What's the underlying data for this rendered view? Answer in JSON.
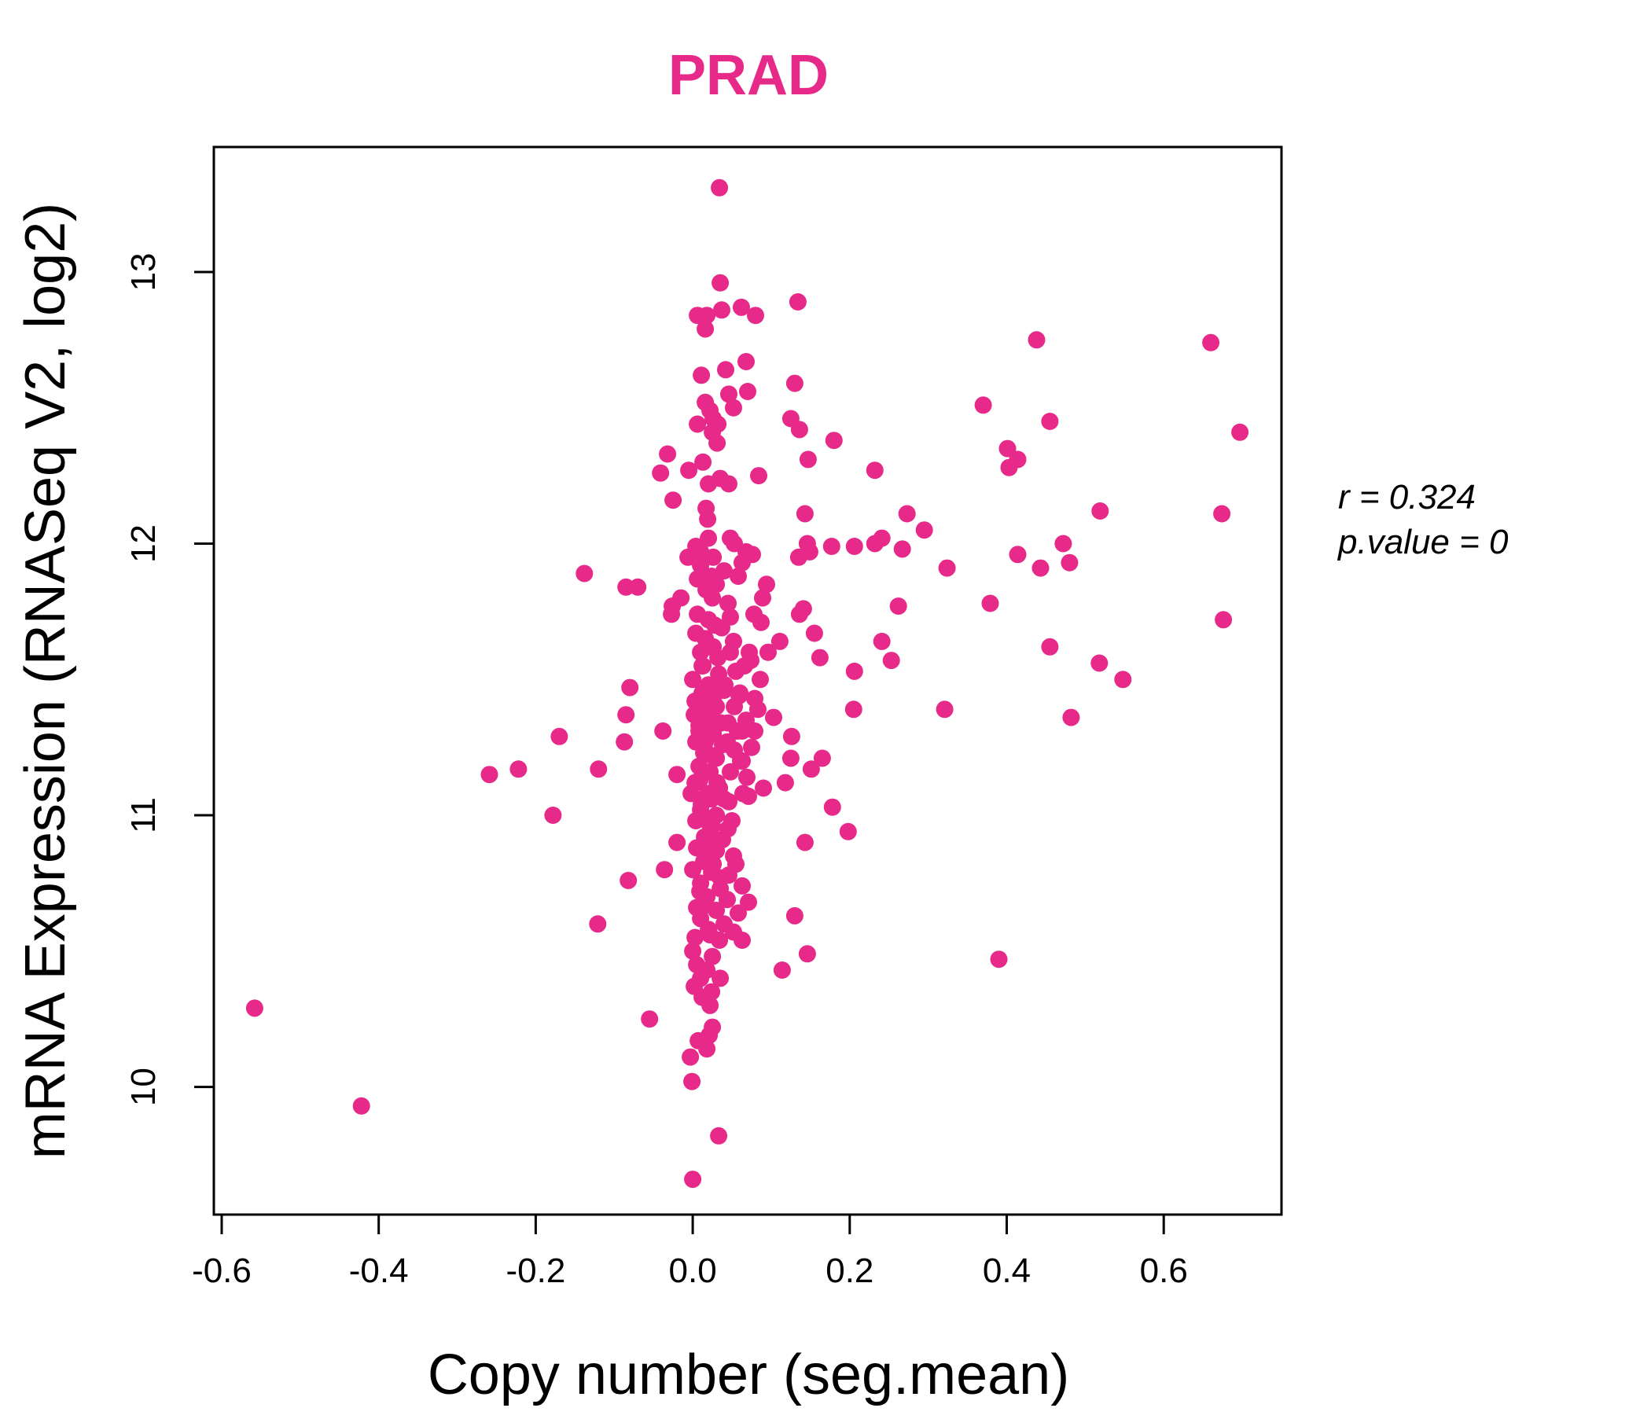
{
  "chart_data": {
    "type": "scatter",
    "title": "PRAD",
    "xlabel": "Copy number (seg.mean)",
    "ylabel": "mRNA Expression (RNASeq V2, log2)",
    "xlim": [
      -0.61,
      0.75
    ],
    "ylim": [
      9.53,
      13.46
    ],
    "x_ticks": [
      -0.6,
      -0.4,
      -0.2,
      0.0,
      0.2,
      0.4,
      0.6
    ],
    "x_tick_labels": [
      "-0.6",
      "-0.4",
      "-0.2",
      "0.0",
      "0.2",
      "0.4",
      "0.6"
    ],
    "y_ticks": [
      10,
      11,
      12,
      13
    ],
    "y_tick_labels": [
      "10",
      "11",
      "12",
      "13"
    ],
    "grid": false,
    "color": "#E7298A",
    "stats": {
      "r_label": "r = 0.324",
      "p_label": "p.value = 0"
    },
    "points": [
      [
        0.034,
        13.31
      ],
      [
        0.035,
        12.96
      ],
      [
        0.062,
        12.87
      ],
      [
        0.037,
        12.86
      ],
      [
        0.134,
        12.89
      ],
      [
        0.08,
        12.84
      ],
      [
        0.006,
        12.84
      ],
      [
        0.018,
        12.84
      ],
      [
        0.016,
        12.79
      ],
      [
        0.068,
        12.67
      ],
      [
        0.042,
        12.64
      ],
      [
        0.011,
        12.62
      ],
      [
        0.13,
        12.59
      ],
      [
        0.07,
        12.56
      ],
      [
        0.046,
        12.55
      ],
      [
        0.016,
        12.52
      ],
      [
        0.022,
        12.49
      ],
      [
        0.052,
        12.5
      ],
      [
        0.026,
        12.46
      ],
      [
        0.006,
        12.44
      ],
      [
        0.032,
        12.44
      ],
      [
        0.125,
        12.46
      ],
      [
        0.136,
        12.42
      ],
      [
        0.025,
        12.41
      ],
      [
        0.031,
        12.37
      ],
      [
        0.18,
        12.38
      ],
      [
        0.37,
        12.51
      ],
      [
        0.438,
        12.75
      ],
      [
        0.455,
        12.45
      ],
      [
        0.401,
        12.35
      ],
      [
        0.414,
        12.31
      ],
      [
        0.403,
        12.28
      ],
      [
        0.66,
        12.74
      ],
      [
        0.697,
        12.41
      ],
      [
        -0.032,
        12.33
      ],
      [
        -0.041,
        12.26
      ],
      [
        -0.005,
        12.27
      ],
      [
        0.013,
        12.3
      ],
      [
        0.02,
        12.22
      ],
      [
        0.035,
        12.24
      ],
      [
        0.046,
        12.22
      ],
      [
        0.084,
        12.25
      ],
      [
        0.147,
        12.31
      ],
      [
        0.232,
        12.27
      ],
      [
        -0.025,
        12.16
      ],
      [
        0.017,
        12.13
      ],
      [
        0.019,
        12.09
      ],
      [
        0.143,
        12.11
      ],
      [
        0.273,
        12.11
      ],
      [
        0.295,
        12.05
      ],
      [
        0.519,
        12.12
      ],
      [
        0.674,
        12.11
      ],
      [
        0.02,
        12.02
      ],
      [
        0.048,
        12.02
      ],
      [
        0.053,
        12.0
      ],
      [
        0.146,
        12.0
      ],
      [
        0.177,
        11.99
      ],
      [
        0.206,
        11.99
      ],
      [
        0.232,
        12.0
      ],
      [
        0.241,
        12.02
      ],
      [
        0.267,
        11.98
      ],
      [
        0.472,
        12.0
      ],
      [
        0.414,
        11.96
      ],
      [
        0.443,
        11.91
      ],
      [
        0.48,
        11.93
      ],
      [
        0.324,
        11.91
      ],
      [
        0.004,
        11.99
      ],
      [
        0.01,
        11.97
      ],
      [
        -0.006,
        11.95
      ],
      [
        0.026,
        11.95
      ],
      [
        0.068,
        11.97
      ],
      [
        0.076,
        11.96
      ],
      [
        0.135,
        11.95
      ],
      [
        0.149,
        11.97
      ],
      [
        0.01,
        11.92
      ],
      [
        0.04,
        11.9
      ],
      [
        0.063,
        11.93
      ],
      [
        0.006,
        11.87
      ],
      [
        0.03,
        11.85
      ],
      [
        -0.138,
        11.89
      ],
      [
        -0.085,
        11.84
      ],
      [
        -0.07,
        11.84
      ],
      [
        -0.015,
        11.8
      ],
      [
        0.025,
        11.8
      ],
      [
        0.045,
        11.78
      ],
      [
        0.094,
        11.85
      ],
      [
        0.089,
        11.8
      ],
      [
        0.379,
        11.78
      ],
      [
        0.262,
        11.77
      ],
      [
        0.676,
        11.72
      ],
      [
        -0.026,
        11.77
      ],
      [
        -0.027,
        11.74
      ],
      [
        0.006,
        11.74
      ],
      [
        0.02,
        11.72
      ],
      [
        0.078,
        11.74
      ],
      [
        0.087,
        11.71
      ],
      [
        0.136,
        11.74
      ],
      [
        0.141,
        11.76
      ],
      [
        0.037,
        11.69
      ],
      [
        0.004,
        11.67
      ],
      [
        0.016,
        11.65
      ],
      [
        0.052,
        11.64
      ],
      [
        0.155,
        11.67
      ],
      [
        0.111,
        11.64
      ],
      [
        0.241,
        11.64
      ],
      [
        0.01,
        11.6
      ],
      [
        0.026,
        11.62
      ],
      [
        0.048,
        11.6
      ],
      [
        0.074,
        11.57
      ],
      [
        0.096,
        11.6
      ],
      [
        0.162,
        11.58
      ],
      [
        0.253,
        11.57
      ],
      [
        0.455,
        11.62
      ],
      [
        0.518,
        11.56
      ],
      [
        0.548,
        11.5
      ],
      [
        0.012,
        11.55
      ],
      [
        0.033,
        11.52
      ],
      [
        0.055,
        11.53
      ],
      [
        0.086,
        11.5
      ],
      [
        0.206,
        11.53
      ],
      [
        -0.08,
        11.47
      ],
      [
        0.0,
        11.5
      ],
      [
        0.02,
        11.48
      ],
      [
        0.04,
        11.46
      ],
      [
        0.06,
        11.45
      ],
      [
        0.079,
        11.43
      ],
      [
        0.014,
        11.42
      ],
      [
        0.03,
        11.4
      ],
      [
        0.053,
        11.4
      ],
      [
        0.083,
        11.39
      ],
      [
        0.205,
        11.39
      ],
      [
        0.321,
        11.39
      ],
      [
        0.482,
        11.36
      ],
      [
        -0.085,
        11.37
      ],
      [
        0.002,
        11.37
      ],
      [
        0.022,
        11.35
      ],
      [
        0.045,
        11.34
      ],
      [
        0.068,
        11.35
      ],
      [
        0.103,
        11.36
      ],
      [
        -0.038,
        11.31
      ],
      [
        -0.17,
        11.29
      ],
      [
        0.008,
        11.31
      ],
      [
        0.026,
        11.3
      ],
      [
        0.063,
        11.31
      ],
      [
        0.079,
        11.31
      ],
      [
        0.126,
        11.29
      ],
      [
        -0.087,
        11.27
      ],
      [
        0.004,
        11.27
      ],
      [
        0.038,
        11.26
      ],
      [
        0.053,
        11.24
      ],
      [
        0.075,
        11.25
      ],
      [
        0.014,
        11.23
      ],
      [
        0.03,
        11.21
      ],
      [
        0.063,
        11.2
      ],
      [
        0.165,
        11.21
      ],
      [
        0.125,
        11.21
      ],
      [
        -0.259,
        11.15
      ],
      [
        -0.222,
        11.17
      ],
      [
        -0.12,
        11.17
      ],
      [
        -0.02,
        11.15
      ],
      [
        0.008,
        11.18
      ],
      [
        0.022,
        11.16
      ],
      [
        0.048,
        11.16
      ],
      [
        0.069,
        11.14
      ],
      [
        0.151,
        11.17
      ],
      [
        0.118,
        11.12
      ],
      [
        0.003,
        11.12
      ],
      [
        0.034,
        11.1
      ],
      [
        0.064,
        11.08
      ],
      [
        0.09,
        11.1
      ],
      [
        0.024,
        11.06
      ],
      [
        0.046,
        11.05
      ],
      [
        0.178,
        11.03
      ],
      [
        0.01,
        11.02
      ],
      [
        0.03,
        11.0
      ],
      [
        -0.178,
        11.0
      ],
      [
        0.004,
        10.98
      ],
      [
        0.025,
        10.96
      ],
      [
        0.045,
        10.95
      ],
      [
        0.198,
        10.94
      ],
      [
        0.015,
        10.92
      ],
      [
        0.038,
        10.91
      ],
      [
        -0.02,
        10.9
      ],
      [
        0.005,
        10.88
      ],
      [
        0.03,
        10.87
      ],
      [
        0.143,
        10.9
      ],
      [
        0.052,
        10.85
      ],
      [
        0.014,
        10.83
      ],
      [
        -0.036,
        10.8
      ],
      [
        0.0,
        10.8
      ],
      [
        0.024,
        10.79
      ],
      [
        0.046,
        10.78
      ],
      [
        -0.082,
        10.76
      ],
      [
        0.01,
        10.75
      ],
      [
        0.035,
        10.73
      ],
      [
        0.063,
        10.74
      ],
      [
        0.018,
        10.7
      ],
      [
        0.044,
        10.69
      ],
      [
        0.071,
        10.68
      ],
      [
        0.005,
        10.66
      ],
      [
        0.03,
        10.65
      ],
      [
        0.058,
        10.64
      ],
      [
        0.13,
        10.63
      ],
      [
        0.01,
        10.62
      ],
      [
        0.04,
        10.6
      ],
      [
        -0.121,
        10.6
      ],
      [
        0.02,
        10.58
      ],
      [
        0.052,
        10.57
      ],
      [
        0.003,
        10.55
      ],
      [
        0.034,
        10.54
      ],
      [
        0.063,
        10.54
      ],
      [
        0.146,
        10.49
      ],
      [
        0.0,
        10.5
      ],
      [
        0.025,
        10.48
      ],
      [
        0.39,
        10.47
      ],
      [
        0.005,
        10.45
      ],
      [
        0.018,
        10.43
      ],
      [
        0.114,
        10.43
      ],
      [
        0.01,
        10.4
      ],
      [
        0.035,
        10.4
      ],
      [
        0.002,
        10.37
      ],
      [
        0.024,
        10.35
      ],
      [
        0.012,
        10.33
      ],
      [
        0.022,
        10.3
      ],
      [
        -0.558,
        10.29
      ],
      [
        -0.055,
        10.25
      ],
      [
        0.025,
        10.22
      ],
      [
        0.021,
        10.19
      ],
      [
        0.007,
        10.17
      ],
      [
        0.018,
        10.14
      ],
      [
        -0.003,
        10.11
      ],
      [
        -0.001,
        10.02
      ],
      [
        -0.422,
        9.93
      ],
      [
        0.033,
        9.82
      ],
      [
        0.0,
        9.66
      ],
      [
        0.012,
        11.45
      ],
      [
        0.018,
        11.38
      ],
      [
        0.027,
        11.44
      ],
      [
        0.008,
        11.33
      ],
      [
        0.016,
        11.27
      ],
      [
        0.024,
        11.22
      ],
      [
        0.009,
        11.13
      ],
      [
        0.019,
        11.08
      ],
      [
        0.011,
        11.04
      ],
      [
        0.021,
        10.97
      ],
      [
        0.014,
        10.87
      ],
      [
        0.026,
        10.82
      ],
      [
        0.009,
        10.72
      ],
      [
        0.017,
        10.67
      ],
      [
        0.022,
        10.56
      ],
      [
        0.013,
        11.55
      ],
      [
        0.021,
        11.62
      ],
      [
        0.028,
        11.7
      ],
      [
        0.017,
        11.83
      ],
      [
        0.024,
        11.88
      ],
      [
        0.032,
        11.58
      ],
      [
        0.036,
        11.34
      ],
      [
        0.031,
        11.12
      ],
      [
        0.029,
        10.91
      ],
      [
        0.035,
        10.77
      ],
      [
        0.041,
        11.48
      ],
      [
        0.044,
        11.27
      ],
      [
        0.04,
        11.06
      ],
      [
        0.003,
        11.42
      ],
      [
        -0.002,
        11.08
      ],
      [
        0.057,
        11.31
      ],
      [
        0.061,
        11.2
      ],
      [
        0.059,
        11.44
      ],
      [
        0.071,
        11.07
      ],
      [
        0.05,
        10.98
      ],
      [
        0.055,
        10.82
      ],
      [
        0.066,
        11.55
      ],
      [
        0.048,
        11.73
      ],
      [
        0.058,
        11.88
      ],
      [
        0.072,
        11.6
      ]
    ]
  }
}
